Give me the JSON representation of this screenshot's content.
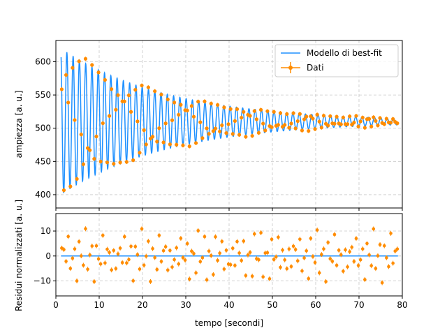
{
  "chart_data": [
    {
      "type": "line",
      "role": "top-fit-panel",
      "ylabel": "ampiezza [a. u.]",
      "xlim": [
        0,
        80
      ],
      "ylim": [
        380,
        632
      ],
      "yticks": [
        400,
        450,
        500,
        550,
        600
      ],
      "grid": true,
      "legend": {
        "placement": "top-right",
        "entries": [
          {
            "label": "Modello di best-fit",
            "color": "#1e90ff"
          },
          {
            "label": "Dati",
            "color": "#ff8c00"
          }
        ]
      },
      "model": {
        "offset": 510,
        "amplitude": 115,
        "decay_tau": 25,
        "period": 1.45,
        "phase": 1.57,
        "x_start": 1.2,
        "x_end": 79
      },
      "series": [
        {
          "name": "Modello di best-fit",
          "color": "#1e90ff"
        },
        {
          "name": "Dati",
          "color": "#ff8c00"
        }
      ]
    },
    {
      "type": "scatter",
      "role": "bottom-residual-panel",
      "xlabel": "tempo [secondi]",
      "ylabel": "Residui normalizzati [a. u.]",
      "xlim": [
        0,
        80
      ],
      "ylim": [
        -16,
        17
      ],
      "xticks": [
        0,
        10,
        20,
        30,
        40,
        50,
        60,
        70,
        80
      ],
      "yticks": [
        -10,
        0,
        10
      ],
      "grid": true,
      "zero_line_color": "#1e90ff",
      "points_color": "#ff8c00"
    }
  ]
}
